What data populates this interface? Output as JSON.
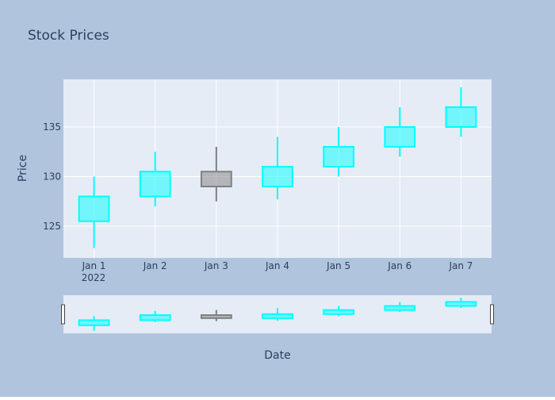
{
  "colors": {
    "paper_bg": "#b0c4de",
    "plot_bg": "#e5ecf6",
    "grid": "#ffffff",
    "text": "#2a3f5f",
    "increasing": "#00ffff",
    "increasing_fill": "rgba(0,255,255,0.5)",
    "decreasing": "#808080",
    "decreasing_fill": "rgba(128,128,128,0.5)",
    "rangeslider_bg": "#e5ecf6",
    "handle_fill": "#ffffff",
    "handle_stroke": "#444444"
  },
  "chart_data": {
    "type": "candlestick",
    "title": "Stock Prices",
    "xlabel": "Date",
    "ylabel": "Price",
    "x_tick_labels": [
      "Jan 1",
      "Jan 2",
      "Jan 3",
      "Jan 4",
      "Jan 5",
      "Jan 6",
      "Jan 7"
    ],
    "x_year_label": "2022",
    "y_ticks": [
      125,
      130,
      135
    ],
    "ylim": [
      121.8,
      139.8
    ],
    "rangeslider": true,
    "series": [
      {
        "dates": [
          "2022-01-01",
          "2022-01-02",
          "2022-01-03",
          "2022-01-04",
          "2022-01-05",
          "2022-01-06",
          "2022-01-07"
        ],
        "open": [
          125.5,
          128.0,
          130.5,
          129.0,
          131.0,
          133.0,
          135.0
        ],
        "high": [
          130.0,
          132.5,
          133.0,
          134.0,
          135.0,
          137.0,
          139.0
        ],
        "low": [
          122.8,
          127.0,
          127.5,
          127.7,
          130.0,
          132.0,
          134.0
        ],
        "close": [
          128.0,
          130.5,
          129.0,
          131.0,
          133.0,
          135.0,
          137.0
        ]
      }
    ]
  }
}
